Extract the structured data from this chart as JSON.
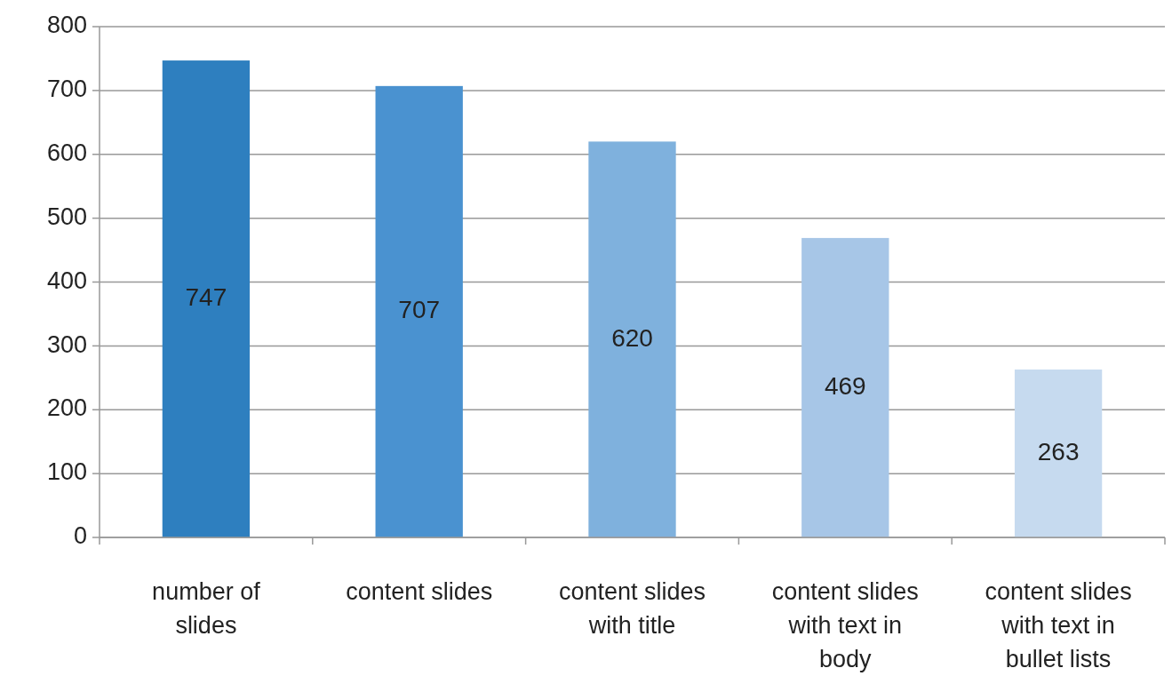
{
  "chart_data": {
    "type": "bar",
    "categories": [
      "number of slides",
      "content slides",
      "content slides with title",
      "content slides with text in body",
      "content slides with text in bullet lists"
    ],
    "values": [
      747,
      707,
      620,
      469,
      263
    ],
    "colors": [
      "#2e7fbf",
      "#4a92d0",
      "#7fb1dd",
      "#a7c6e7",
      "#c6daef"
    ],
    "ylim": [
      0,
      800
    ],
    "yticks": [
      0,
      100,
      200,
      300,
      400,
      500,
      600,
      700,
      800
    ],
    "grid": "y",
    "data_labels": true
  }
}
